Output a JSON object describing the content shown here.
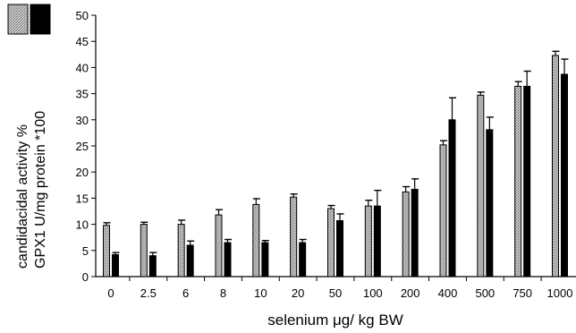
{
  "chart_data": {
    "type": "bar",
    "xlabel": "selenium μg/ kg BW",
    "ylabel_lines": [
      "candidacidal activity %",
      "GPX1 U/mg protein *100"
    ],
    "ylim": [
      0,
      50
    ],
    "yticks": [
      0,
      5,
      10,
      15,
      20,
      25,
      30,
      35,
      40,
      45,
      50
    ],
    "categories": [
      "0",
      "2.5",
      "6",
      "8",
      "10",
      "20",
      "50",
      "100",
      "200",
      "400",
      "500",
      "750",
      "1000"
    ],
    "series": [
      {
        "pattern": "hatched-grey",
        "color": "#b0b0b0",
        "values": [
          9.8,
          10.0,
          10.0,
          11.8,
          13.8,
          15.2,
          13.0,
          13.5,
          16.2,
          25.2,
          34.7,
          36.4,
          42.3
        ],
        "errors": [
          0.5,
          0.4,
          0.8,
          1.0,
          1.1,
          0.6,
          0.6,
          1.1,
          1.0,
          0.8,
          0.6,
          0.9,
          0.8
        ]
      },
      {
        "pattern": "solid-black",
        "color": "#000000",
        "values": [
          4.2,
          4.0,
          6.0,
          6.5,
          6.5,
          6.5,
          10.7,
          13.5,
          16.7,
          30.0,
          28.1,
          36.4,
          38.7
        ],
        "errors": [
          0.4,
          0.6,
          0.8,
          0.6,
          0.4,
          0.6,
          1.3,
          3.0,
          2.0,
          4.2,
          2.4,
          2.9,
          2.9
        ]
      }
    ]
  }
}
